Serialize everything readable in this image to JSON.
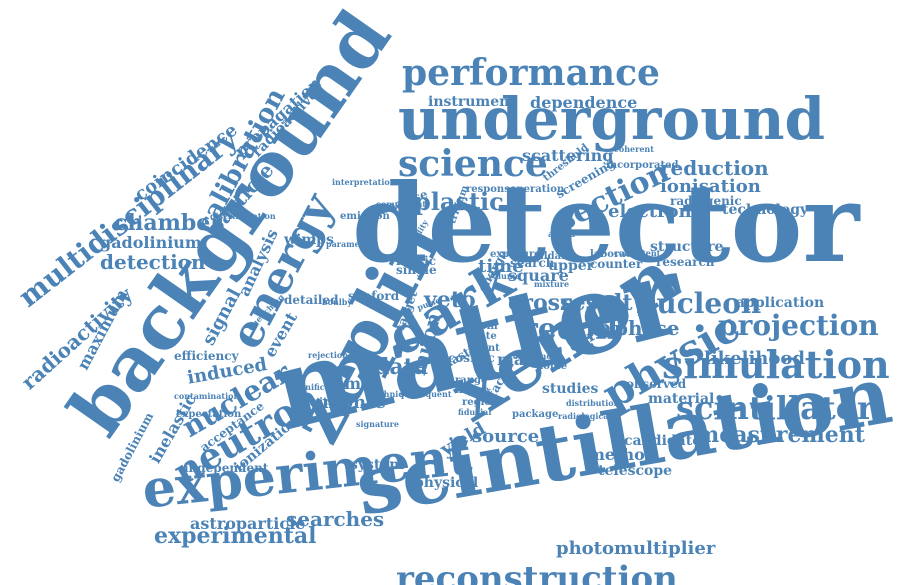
{
  "color": "#4b83b6",
  "words": [
    "detector",
    "matter",
    "scintillation",
    "xenon",
    "background",
    "zeplin",
    "underground",
    "experiment",
    "dark",
    "performance",
    "simulation",
    "science",
    "energy",
    "multidisciplinary",
    "physic",
    "scintillator",
    "neutron",
    "section",
    "reconstruction",
    "nucleon",
    "projection",
    "measurement",
    "recoil",
    "nuclear",
    "experimental",
    "chamber",
    "detection",
    "calibration",
    "veto",
    "plastic",
    "searches",
    "photomultiplier",
    "gadolinium",
    "radioactivity",
    "coincidence",
    "particle",
    "propagation",
    "radioactive",
    "cross",
    "result",
    "phase",
    "data",
    "muon",
    "reduction",
    "ionisation",
    "electron",
    "technology",
    "radiogenic",
    "scattering",
    "instrument",
    "dependence",
    "likelihood",
    "application",
    "structure",
    "research",
    "candidate",
    "method",
    "telescope",
    "studies",
    "observed",
    "material",
    "source",
    "yield",
    "monte",
    "limit",
    "astroparticle",
    "signal",
    "induced",
    "event",
    "analysis",
    "inelastic",
    "ionization",
    "maximum",
    "efficiency",
    "wimps",
    "sanford",
    "physical",
    "system",
    "time",
    "upper",
    "square",
    "search",
    "carlo",
    "mas",
    "elastic",
    "cosmic",
    "independent",
    "gadolinium",
    "detailed",
    "position",
    "acceptance",
    "expectation",
    "interpretation",
    "emission",
    "discrimination",
    "response",
    "operation",
    "threshold",
    "screening",
    "target",
    "spin",
    "rate",
    "geant",
    "noble",
    "range",
    "image",
    "region",
    "fiducial",
    "package",
    "counter",
    "laboratory",
    "exposure",
    "music",
    "single",
    "boulby",
    "charge",
    "factor",
    "component",
    "analyse",
    "tritium",
    "parameter",
    "stability",
    "ildark",
    "incorporated",
    "coherent",
    "consistent",
    "distribution",
    "radiological",
    "confidence",
    "signature",
    "subsequent",
    "technique",
    "quenching",
    "rejection",
    "contamination",
    "significant",
    "mixture",
    "pulse",
    "volume",
    "added"
  ]
}
